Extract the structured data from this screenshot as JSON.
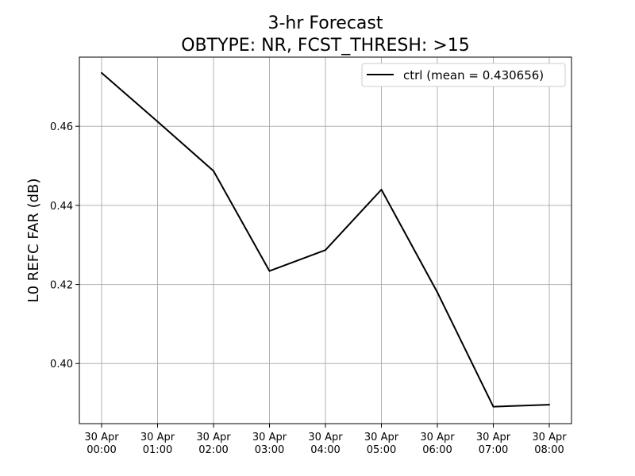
{
  "chart_data": {
    "type": "line",
    "title": "3-hr Forecast",
    "subtitle": "OBTYPE: NR,  FCST_THRESH: >15",
    "xlabel": "",
    "ylabel": "L0 REFC FAR (dB)",
    "x_tick_labels": [
      [
        "30 Apr",
        "00:00"
      ],
      [
        "30 Apr",
        "01:00"
      ],
      [
        "30 Apr",
        "02:00"
      ],
      [
        "30 Apr",
        "03:00"
      ],
      [
        "30 Apr",
        "04:00"
      ],
      [
        "30 Apr",
        "05:00"
      ],
      [
        "30 Apr",
        "06:00"
      ],
      [
        "30 Apr",
        "07:00"
      ],
      [
        "30 Apr",
        "08:00"
      ]
    ],
    "y_ticks": [
      0.4,
      0.42,
      0.44,
      0.46
    ],
    "y_tick_labels": [
      "0.40",
      "0.42",
      "0.44",
      "0.46"
    ],
    "ylim": [
      0.3848,
      0.4775
    ],
    "grid": true,
    "legend_position": "top-right",
    "series": [
      {
        "name": "ctrl (mean = 0.430656)",
        "color": "#000000",
        "values": [
          0.4735,
          0.4612,
          0.4487,
          0.4234,
          0.4287,
          0.444,
          0.418,
          0.3891,
          0.3896
        ]
      }
    ]
  }
}
